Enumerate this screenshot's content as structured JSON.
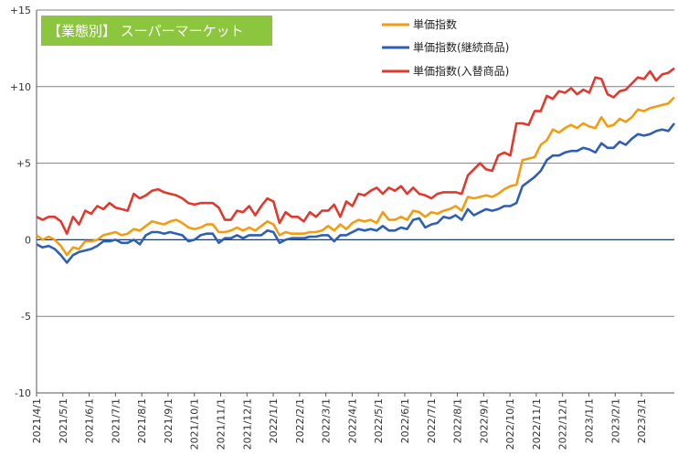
{
  "chart_data": {
    "type": "line",
    "title": "【業態別】 スーパーマーケット",
    "title_bg": "#8cc63f",
    "legend_position": "top-right",
    "grid": true,
    "ylim": [
      -10,
      15
    ],
    "y_ticks": [
      {
        "value": 15,
        "label": "+15"
      },
      {
        "value": 10,
        "label": "+10"
      },
      {
        "value": 5,
        "label": "+5"
      },
      {
        "value": 0,
        "label": "0"
      },
      {
        "value": -5,
        "label": "-5"
      },
      {
        "value": -10,
        "label": "-10"
      }
    ],
    "x_tick_labels": [
      "2021/4/1",
      "2021/5/1",
      "2021/6/1",
      "2021/7/1",
      "2021/8/1",
      "2021/9/1",
      "2021/10/1",
      "2021/11/1",
      "2021/12/1",
      "2022/1/1",
      "2022/2/1",
      "2022/3/1",
      "2022/4/1",
      "2022/5/1",
      "2022/6/1",
      "2022/7/1",
      "2022/8/1",
      "2022/9/1",
      "2022/10/1",
      "2022/11/1",
      "2022/12/1",
      "2023/1/1",
      "2023/2/1",
      "2023/3/1"
    ],
    "weeks_per_month": 4.33,
    "series": [
      {
        "name": "単価指数",
        "color": "#f39c12",
        "values": [
          0.3,
          0.0,
          0.2,
          0.0,
          -0.4,
          -1.0,
          -0.5,
          -0.6,
          -0.1,
          -0.1,
          0.0,
          0.3,
          0.4,
          0.5,
          0.3,
          0.4,
          0.7,
          0.6,
          0.9,
          1.2,
          1.1,
          1.0,
          1.2,
          1.3,
          1.1,
          0.8,
          0.7,
          0.8,
          1.0,
          1.0,
          0.5,
          0.5,
          0.6,
          0.8,
          0.6,
          0.8,
          0.6,
          0.9,
          1.2,
          1.0,
          0.3,
          0.5,
          0.4,
          0.4,
          0.4,
          0.5,
          0.5,
          0.6,
          0.9,
          0.6,
          1.0,
          0.7,
          1.1,
          1.3,
          1.2,
          1.3,
          1.1,
          1.8,
          1.3,
          1.3,
          1.5,
          1.3,
          1.9,
          1.8,
          1.5,
          1.8,
          1.7,
          1.9,
          2.0,
          2.2,
          1.9,
          2.8,
          2.7,
          2.8,
          2.9,
          2.8,
          3.0,
          3.3,
          3.5,
          3.6,
          5.2,
          5.3,
          5.4,
          6.2,
          6.5,
          7.2,
          7.0,
          7.3,
          7.5,
          7.3,
          7.6,
          7.4,
          7.3,
          8.0,
          7.4,
          7.5,
          7.9,
          7.7,
          8.0,
          8.5,
          8.4,
          8.6,
          8.7,
          8.8,
          8.9,
          9.3
        ]
      },
      {
        "name": "単価指数(継続商品)",
        "color": "#2f5fb3",
        "values": [
          -0.3,
          -0.5,
          -0.4,
          -0.6,
          -1.0,
          -1.5,
          -1.0,
          -0.8,
          -0.7,
          -0.6,
          -0.4,
          -0.1,
          -0.1,
          0.0,
          -0.2,
          -0.2,
          0.0,
          -0.3,
          0.3,
          0.5,
          0.5,
          0.4,
          0.5,
          0.4,
          0.3,
          -0.1,
          0.0,
          0.3,
          0.4,
          0.4,
          -0.2,
          0.1,
          0.1,
          0.3,
          0.1,
          0.3,
          0.3,
          0.3,
          0.6,
          0.5,
          -0.2,
          0.0,
          0.1,
          0.1,
          0.1,
          0.2,
          0.2,
          0.3,
          0.3,
          -0.1,
          0.3,
          0.3,
          0.5,
          0.7,
          0.6,
          0.7,
          0.6,
          0.9,
          0.6,
          0.6,
          0.8,
          0.7,
          1.3,
          1.4,
          0.8,
          1.0,
          1.1,
          1.5,
          1.4,
          1.6,
          1.3,
          2.0,
          1.6,
          1.8,
          2.0,
          1.9,
          2.0,
          2.2,
          2.2,
          2.4,
          3.5,
          3.8,
          4.1,
          4.5,
          5.2,
          5.5,
          5.5,
          5.7,
          5.8,
          5.8,
          6.0,
          5.9,
          5.7,
          6.3,
          6.0,
          6.0,
          6.4,
          6.2,
          6.6,
          6.9,
          6.8,
          6.9,
          7.1,
          7.2,
          7.1,
          7.6
        ]
      },
      {
        "name": "単価指数(入替商品)",
        "color": "#e03a2f",
        "values": [
          1.5,
          1.3,
          1.5,
          1.5,
          1.2,
          0.4,
          1.5,
          1.0,
          1.9,
          1.7,
          2.2,
          2.0,
          2.4,
          2.1,
          2.0,
          1.9,
          3.0,
          2.7,
          2.9,
          3.2,
          3.3,
          3.1,
          3.0,
          2.9,
          2.7,
          2.4,
          2.3,
          2.4,
          2.4,
          2.4,
          2.1,
          1.3,
          1.3,
          1.9,
          1.8,
          2.2,
          1.6,
          2.2,
          2.7,
          2.5,
          1.1,
          1.8,
          1.5,
          1.5,
          1.2,
          1.8,
          1.5,
          1.9,
          1.9,
          2.3,
          1.5,
          2.5,
          2.2,
          3.0,
          2.9,
          3.2,
          3.4,
          3.0,
          3.4,
          3.2,
          3.5,
          3.0,
          3.4,
          3.0,
          2.9,
          2.7,
          3.0,
          3.1,
          3.1,
          3.1,
          3.0,
          4.2,
          4.6,
          5.0,
          4.6,
          4.5,
          5.5,
          5.7,
          5.5,
          7.6,
          7.6,
          7.5,
          8.4,
          8.4,
          9.4,
          9.2,
          9.7,
          9.6,
          9.9,
          9.5,
          9.8,
          9.6,
          10.6,
          10.5,
          9.5,
          9.3,
          9.7,
          9.8,
          10.2,
          10.6,
          10.5,
          11.0,
          10.4,
          10.8,
          10.9,
          11.2
        ]
      }
    ]
  }
}
